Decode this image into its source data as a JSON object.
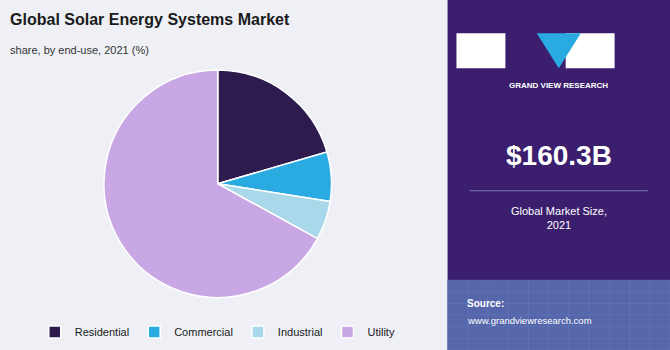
{
  "chart_data": {
    "type": "pie",
    "title": "Global Solar Energy Systems Market",
    "subtitle": "share, by end-use, 2021 (%)",
    "categories": [
      "Residential",
      "Commercial",
      "Industrial",
      "Utility"
    ],
    "values": [
      20.5,
      7.0,
      5.5,
      67.0
    ],
    "colors": [
      "#2d1b4e",
      "#29abe2",
      "#a8d8ea",
      "#c9a6e4"
    ],
    "legend": "bottom",
    "annotations": [
      "GRAND VIEW RESEARCH",
      "$160.3B",
      "Global Market Size,\n2021",
      "Source:",
      "www.grandviewresearch.com"
    ]
  }
}
